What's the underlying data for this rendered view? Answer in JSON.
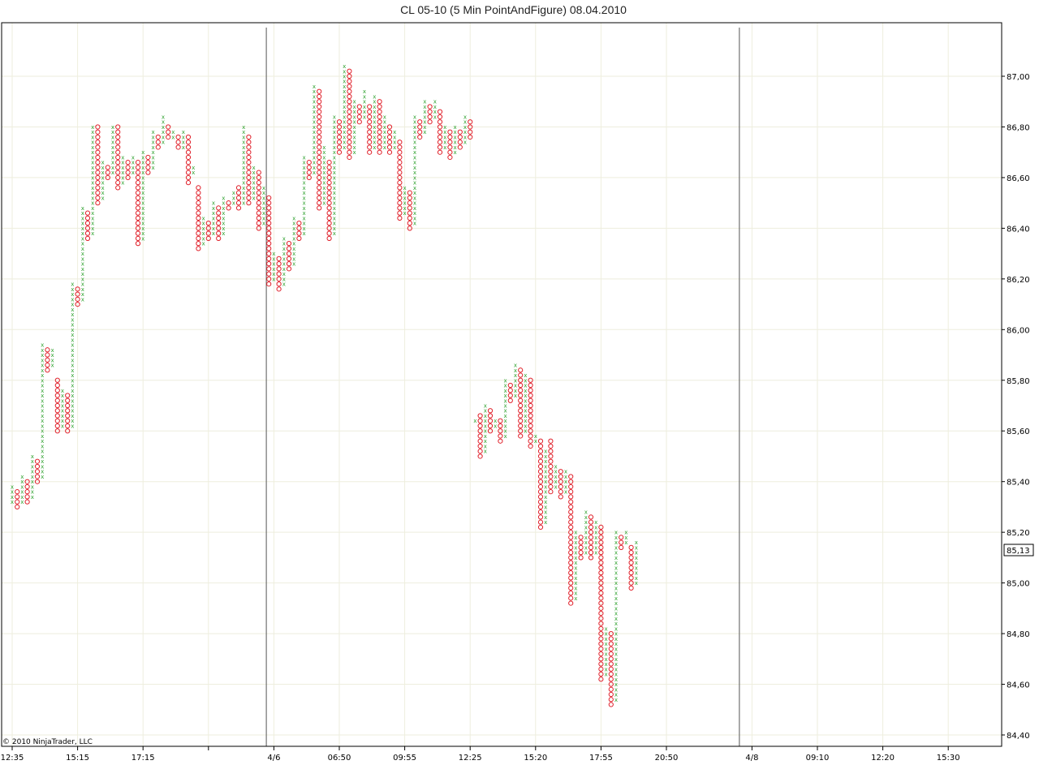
{
  "chart_data": {
    "type": "point_and_figure",
    "title": "CL 05-10 (5 Min PointAndFigure)  08.04.2010",
    "xlabel": "",
    "ylabel": "",
    "ylim": [
      84.38,
      87.2
    ],
    "box_size": 0.02,
    "y_ticks": [
      "84,40",
      "84,60",
      "84,80",
      "85,00",
      "85,20",
      "85,40",
      "85,60",
      "85,80",
      "86,00",
      "86,20",
      "86,40",
      "86,60",
      "86,80",
      "87,00"
    ],
    "y_tick_values": [
      84.4,
      84.6,
      84.8,
      85.0,
      85.2,
      85.4,
      85.6,
      85.8,
      86.0,
      86.2,
      86.4,
      86.6,
      86.8,
      87.0
    ],
    "x_ticks": [
      {
        "label": "12:35",
        "column": 0
      },
      {
        "label": "15:15",
        "column": 13
      },
      {
        "label": "17:15",
        "column": 26
      },
      {
        "label": "",
        "column": 39
      },
      {
        "label": "4/6",
        "column": 52
      },
      {
        "label": "06:50",
        "column": 65
      },
      {
        "label": "09:55",
        "column": 78
      },
      {
        "label": "12:25",
        "column": 91
      },
      {
        "label": "15:20",
        "column": 104
      },
      {
        "label": "17:55",
        "column": 117
      },
      {
        "label": "20:50",
        "column": 130
      },
      {
        "label": "4/8",
        "column": 147
      },
      {
        "label": "09:10",
        "column": 160
      },
      {
        "label": "12:20",
        "column": 173
      },
      {
        "label": "15:30",
        "column": 186
      }
    ],
    "session_breaks": [
      50.5,
      144.5
    ],
    "current_price": "85,13",
    "colors": {
      "x": "#1f9a1f",
      "o": "#e0202a",
      "grid": "#eeeede",
      "break": "#555555"
    },
    "grid": true,
    "columns": [
      [
        "X",
        85.32,
        85.38
      ],
      [
        "O",
        85.3,
        85.36
      ],
      [
        "X",
        85.32,
        85.42
      ],
      [
        "O",
        85.32,
        85.4
      ],
      [
        "X",
        85.34,
        85.5
      ],
      [
        "O",
        85.4,
        85.48
      ],
      [
        "X",
        85.42,
        85.94
      ],
      [
        "O",
        85.84,
        85.92
      ],
      [
        "X",
        85.86,
        85.92
      ],
      [
        "O",
        85.6,
        85.8
      ],
      [
        "X",
        85.62,
        85.76
      ],
      [
        "O",
        85.6,
        85.74
      ],
      [
        "X",
        85.62,
        86.18
      ],
      [
        "O",
        86.1,
        86.16
      ],
      [
        "X",
        86.12,
        86.48
      ],
      [
        "O",
        86.36,
        86.46
      ],
      [
        "X",
        86.38,
        86.8
      ],
      [
        "O",
        86.5,
        86.8
      ],
      [
        "X",
        86.52,
        86.66
      ],
      [
        "O",
        86.6,
        86.64
      ],
      [
        "X",
        86.62,
        86.8
      ],
      [
        "O",
        86.56,
        86.8
      ],
      [
        "X",
        86.58,
        86.68
      ],
      [
        "O",
        86.6,
        86.66
      ],
      [
        "X",
        86.62,
        86.68
      ],
      [
        "O",
        86.34,
        86.66
      ],
      [
        "X",
        86.36,
        86.7
      ],
      [
        "O",
        86.62,
        86.68
      ],
      [
        "X",
        86.64,
        86.78
      ],
      [
        "O",
        86.72,
        86.76
      ],
      [
        "X",
        86.74,
        86.84
      ],
      [
        "O",
        86.76,
        86.8
      ],
      [
        "X",
        86.76,
        86.78
      ],
      [
        "O",
        86.72,
        86.76
      ],
      [
        "X",
        86.72,
        86.78
      ],
      [
        "O",
        86.58,
        86.76
      ],
      [
        "X",
        86.62,
        86.64
      ],
      [
        "O",
        86.32,
        86.56
      ],
      [
        "X",
        86.34,
        86.44
      ],
      [
        "O",
        86.36,
        86.42
      ],
      [
        "X",
        86.38,
        86.5
      ],
      [
        "O",
        86.36,
        86.48
      ],
      [
        "X",
        86.38,
        86.52
      ],
      [
        "O",
        86.48,
        86.5
      ],
      [
        "X",
        86.5,
        86.54
      ],
      [
        "O",
        86.48,
        86.56
      ],
      [
        "X",
        86.5,
        86.8
      ],
      [
        "O",
        86.5,
        86.76
      ],
      [
        "X",
        86.52,
        86.64
      ],
      [
        "O",
        86.4,
        86.62
      ],
      [
        "X",
        86.42,
        86.56
      ],
      [
        "O",
        86.18,
        86.52
      ],
      [
        "X",
        86.2,
        86.3
      ],
      [
        "O",
        86.16,
        86.28
      ],
      [
        "X",
        86.18,
        86.36
      ],
      [
        "O",
        86.24,
        86.34
      ],
      [
        "X",
        86.26,
        86.44
      ],
      [
        "O",
        86.36,
        86.42
      ],
      [
        "X",
        86.38,
        86.68
      ],
      [
        "O",
        86.6,
        86.66
      ],
      [
        "X",
        86.62,
        86.96
      ],
      [
        "O",
        86.48,
        86.94
      ],
      [
        "X",
        86.5,
        86.72
      ],
      [
        "O",
        86.36,
        86.66
      ],
      [
        "X",
        86.38,
        86.84
      ],
      [
        "O",
        86.7,
        86.82
      ],
      [
        "X",
        86.72,
        87.04
      ],
      [
        "O",
        86.68,
        87.02
      ],
      [
        "X",
        86.7,
        86.9
      ],
      [
        "O",
        86.82,
        86.88
      ],
      [
        "X",
        86.84,
        86.94
      ],
      [
        "O",
        86.7,
        86.88
      ],
      [
        "X",
        86.72,
        86.92
      ],
      [
        "O",
        86.7,
        86.9
      ],
      [
        "X",
        86.72,
        86.84
      ],
      [
        "O",
        86.7,
        86.8
      ],
      [
        "X",
        86.72,
        86.78
      ],
      [
        "O",
        86.44,
        86.74
      ],
      [
        "X",
        86.46,
        86.56
      ],
      [
        "O",
        86.4,
        86.54
      ],
      [
        "X",
        86.42,
        86.84
      ],
      [
        "O",
        86.76,
        86.82
      ],
      [
        "X",
        86.78,
        86.9
      ],
      [
        "O",
        86.82,
        86.88
      ],
      [
        "X",
        86.84,
        86.9
      ],
      [
        "O",
        86.7,
        86.86
      ],
      [
        "X",
        86.72,
        86.8
      ],
      [
        "O",
        86.68,
        86.78
      ],
      [
        "X",
        86.7,
        86.8
      ],
      [
        "O",
        86.72,
        86.78
      ],
      [
        "X",
        86.74,
        86.84
      ],
      [
        "O",
        86.76,
        86.82
      ],
      [
        "X",
        85.64,
        85.64
      ],
      [
        "O",
        85.5,
        85.66
      ],
      [
        "X",
        85.52,
        85.7
      ],
      [
        "O",
        85.6,
        85.68
      ],
      [
        "X",
        85.62,
        85.64
      ],
      [
        "O",
        85.56,
        85.64
      ],
      [
        "X",
        85.58,
        85.8
      ],
      [
        "O",
        85.72,
        85.78
      ],
      [
        "X",
        85.74,
        85.86
      ],
      [
        "O",
        85.58,
        85.84
      ],
      [
        "X",
        85.6,
        85.82
      ],
      [
        "O",
        85.54,
        85.8
      ],
      [
        "X",
        85.56,
        85.58
      ],
      [
        "O",
        85.22,
        85.56
      ],
      [
        "X",
        85.24,
        85.52
      ],
      [
        "O",
        85.36,
        85.56
      ],
      [
        "X",
        85.38,
        85.46
      ],
      [
        "O",
        85.34,
        85.44
      ],
      [
        "X",
        85.36,
        85.44
      ],
      [
        "O",
        84.92,
        85.42
      ],
      [
        "X",
        84.94,
        85.2
      ],
      [
        "O",
        85.1,
        85.18
      ],
      [
        "X",
        85.12,
        85.28
      ],
      [
        "O",
        85.1,
        85.26
      ],
      [
        "X",
        85.12,
        85.24
      ],
      [
        "O",
        84.62,
        85.22
      ],
      [
        "X",
        84.64,
        84.82
      ],
      [
        "O",
        84.52,
        84.8
      ],
      [
        "X",
        84.54,
        85.2
      ],
      [
        "O",
        85.14,
        85.18
      ],
      [
        "X",
        85.16,
        85.2
      ],
      [
        "O",
        84.98,
        85.14
      ],
      [
        "X",
        85.0,
        85.16
      ]
    ]
  },
  "footer": {
    "copyright": "© 2010 NinjaTrader, LLC"
  }
}
